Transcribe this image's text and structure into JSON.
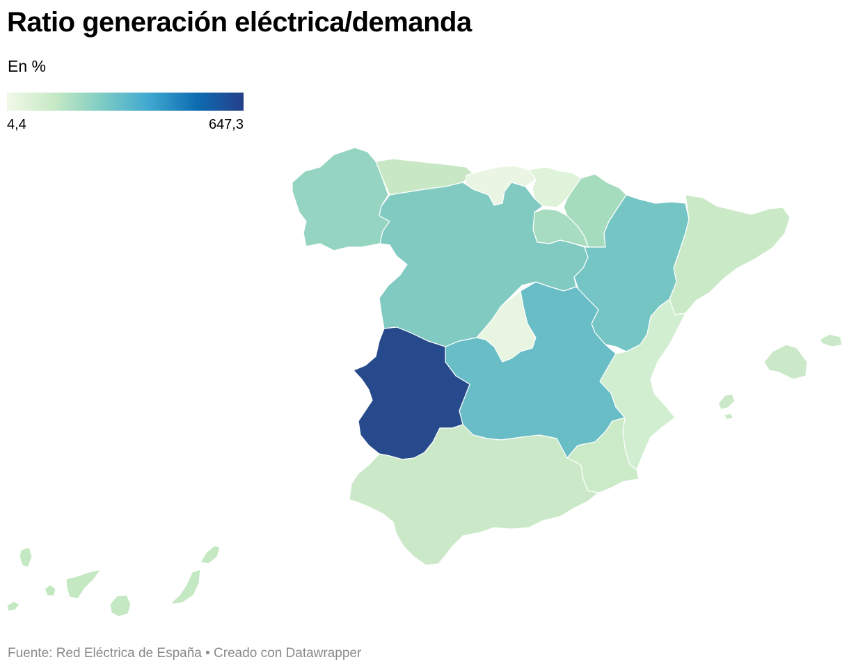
{
  "header": {
    "title": "Ratio generación eléctrica/demanda",
    "subtitle": "En %"
  },
  "legend": {
    "min_label": "4,4",
    "max_label": "647,3",
    "color_stops": [
      "#f1f9e8",
      "#c7e9c5",
      "#7fccc4",
      "#40a8d0",
      "#0d6db1",
      "#253f8a"
    ]
  },
  "footer": {
    "source": "Fuente: Red Eléctrica de España • Creado con Datawrapper"
  },
  "regions": [
    {
      "name": "Galicia",
      "color": "#94d4c0"
    },
    {
      "name": "Asturias",
      "color": "#c8e8c5"
    },
    {
      "name": "Cantabria",
      "color": "#eaf6e3"
    },
    {
      "name": "País Vasco",
      "color": "#dff2da"
    },
    {
      "name": "Navarra",
      "color": "#a6dcbe"
    },
    {
      "name": "La Rioja",
      "color": "#a8dcc0"
    },
    {
      "name": "Castilla y León",
      "color": "#80cac2"
    },
    {
      "name": "Aragón",
      "color": "#75c5c5"
    },
    {
      "name": "Cataluña",
      "color": "#cae9c7"
    },
    {
      "name": "Comunidad de Madrid",
      "color": "#e8f5e0"
    },
    {
      "name": "Castilla-La Mancha",
      "color": "#69bdc6"
    },
    {
      "name": "Extremadura",
      "color": "#264a8b"
    },
    {
      "name": "Comunidad Valenciana",
      "color": "#d2eed1"
    },
    {
      "name": "Región de Murcia",
      "color": "#caeac8"
    },
    {
      "name": "Andalucía",
      "color": "#cbe9c8"
    },
    {
      "name": "Islas Baleares",
      "color": "#cbe9c8"
    },
    {
      "name": "Canarias",
      "color": "#c4e8c2"
    }
  ]
}
